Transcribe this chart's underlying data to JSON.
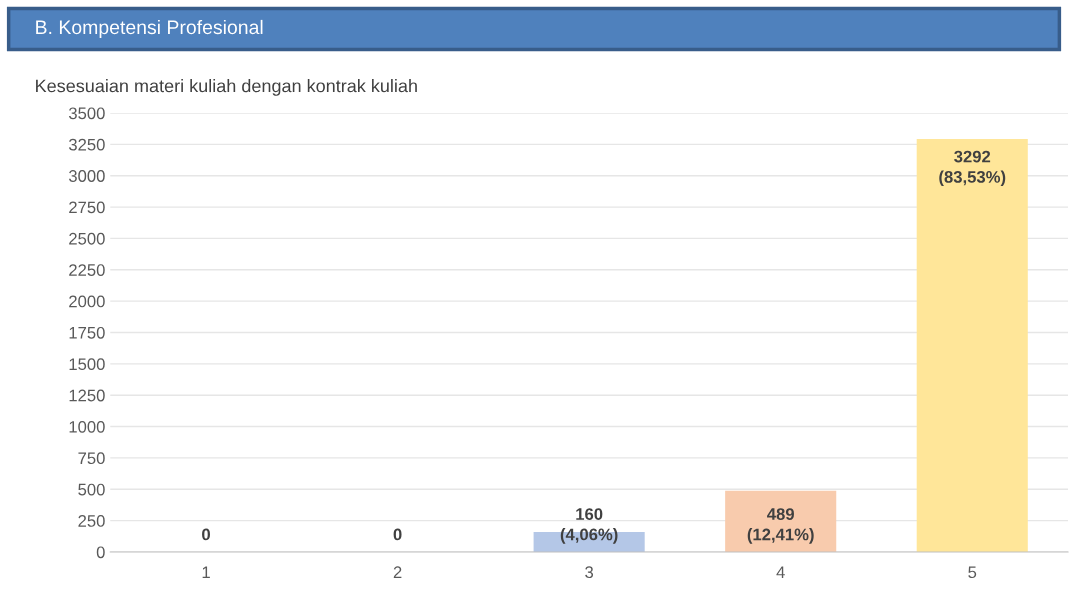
{
  "chart_data": {
    "type": "bar",
    "title": "B. Kompetensi Profesional",
    "subtitle": "Kesesuaian materi kuliah dengan kontrak kuliah",
    "categories": [
      "1",
      "2",
      "3",
      "4",
      "5"
    ],
    "values": [
      0,
      0,
      160,
      489,
      3292
    ],
    "colors": [
      "#c9c9c9",
      "#a9d18e",
      "#b4c7e7",
      "#f8cbad",
      "#ffe699"
    ],
    "value_labels": [
      "0",
      "0",
      "160\n(4,06%)",
      "489\n(12,41%)",
      "3292\n(83,53%)"
    ],
    "ylim": [
      0,
      3500
    ],
    "yticks": [
      0,
      250,
      500,
      750,
      1000,
      1250,
      1500,
      1750,
      2000,
      2250,
      2500,
      2750,
      3000,
      3250,
      3500
    ],
    "grid": "y",
    "legend": false
  }
}
